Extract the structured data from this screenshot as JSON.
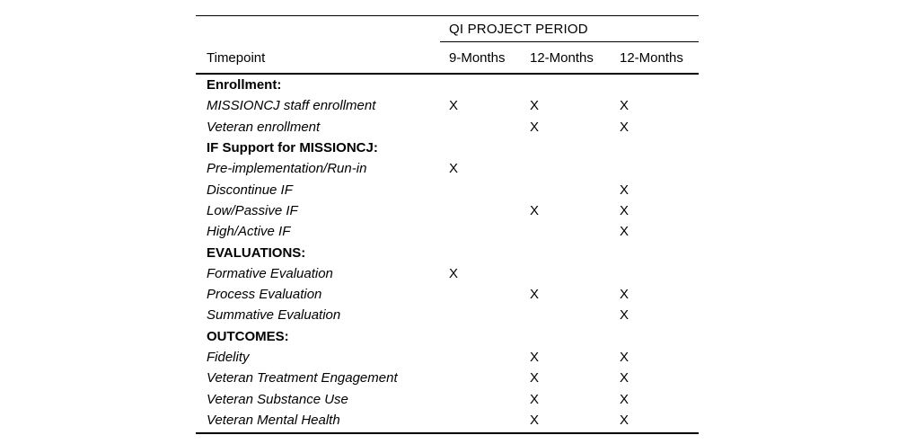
{
  "table": {
    "group_header": "QI PROJECT PERIOD",
    "columns": {
      "label": "Timepoint",
      "periods": [
        "9-Months",
        "12-Months",
        "12-Months"
      ]
    },
    "mark_symbol": "X",
    "rows": [
      {
        "label": "Enrollment:",
        "type": "section",
        "cells": [
          "",
          "",
          ""
        ]
      },
      {
        "label": "MISSIONCJ staff enrollment",
        "type": "item",
        "cells": [
          "X",
          "X",
          "X"
        ]
      },
      {
        "label": "Veteran enrollment",
        "type": "item",
        "cells": [
          "",
          "X",
          "X"
        ]
      },
      {
        "label": "IF Support for MISSIONCJ:",
        "type": "section",
        "cells": [
          "",
          "",
          ""
        ]
      },
      {
        "label": "Pre-implementation/Run-in",
        "type": "item",
        "cells": [
          "X",
          "",
          ""
        ]
      },
      {
        "label": "Discontinue IF",
        "type": "item",
        "cells": [
          "",
          "",
          "X"
        ]
      },
      {
        "label": "Low/Passive IF",
        "type": "item",
        "cells": [
          "",
          "X",
          "X"
        ]
      },
      {
        "label": "High/Active IF",
        "type": "item",
        "cells": [
          "",
          "",
          "X"
        ]
      },
      {
        "label": "EVALUATIONS:",
        "type": "section",
        "cells": [
          "",
          "",
          ""
        ]
      },
      {
        "label": "Formative Evaluation",
        "type": "item",
        "cells": [
          "X",
          "",
          ""
        ]
      },
      {
        "label": "Process Evaluation",
        "type": "item",
        "cells": [
          "",
          "X",
          "X"
        ]
      },
      {
        "label": "Summative Evaluation",
        "type": "item",
        "cells": [
          "",
          "",
          "X"
        ]
      },
      {
        "label": "OUTCOMES:",
        "type": "section",
        "cells": [
          "",
          "",
          ""
        ]
      },
      {
        "label": "Fidelity",
        "type": "item",
        "cells": [
          "",
          "X",
          "X"
        ]
      },
      {
        "label": "Veteran Treatment Engagement",
        "type": "item",
        "cells": [
          "",
          "X",
          "X"
        ]
      },
      {
        "label": "Veteran Substance Use",
        "type": "item",
        "cells": [
          "",
          "X",
          "X"
        ]
      },
      {
        "label": "Veteran Mental Health",
        "type": "item",
        "cells": [
          "",
          "X",
          "X"
        ]
      }
    ],
    "colors": {
      "text": "#000000",
      "rule": "#000000",
      "background": "#ffffff"
    }
  }
}
